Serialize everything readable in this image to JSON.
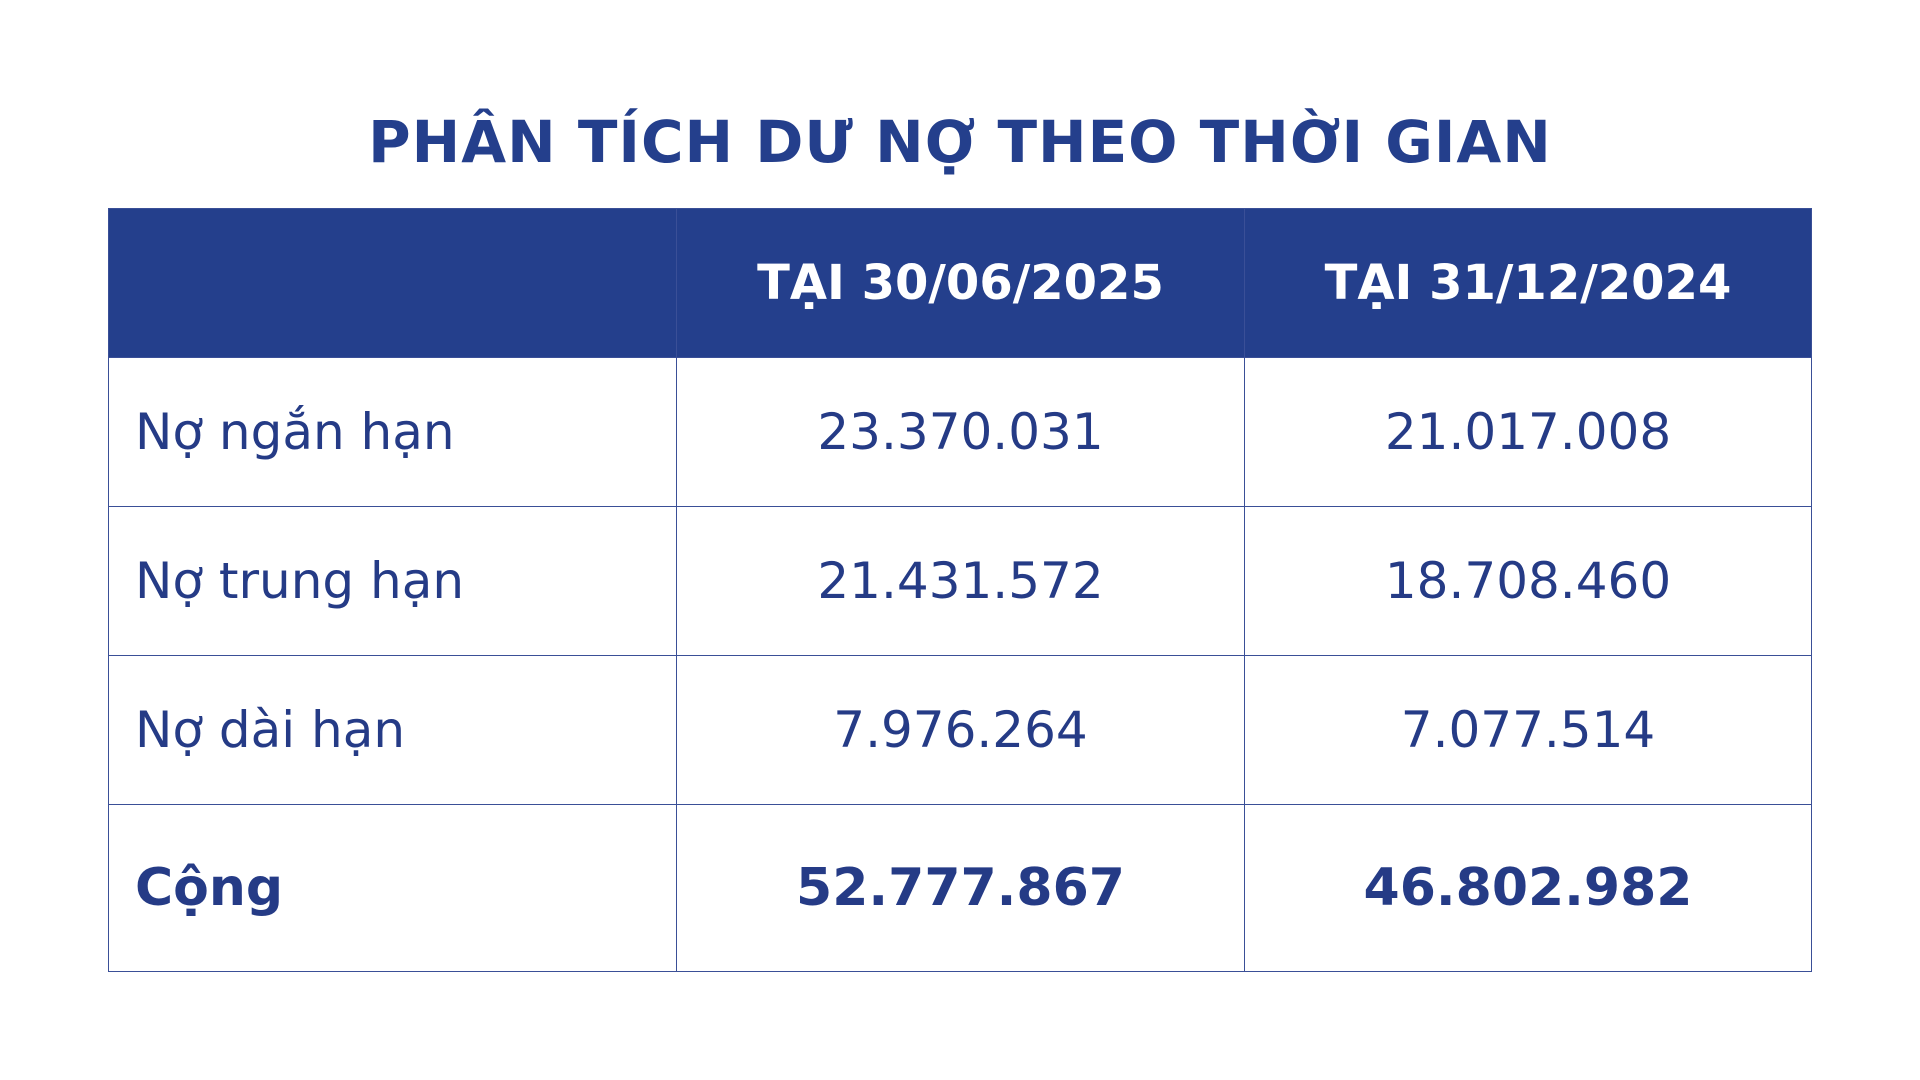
{
  "title": "PHÂN TÍCH DƯ NỢ THEO THỜI GIAN",
  "table": {
    "header": [
      "TẠI 30/06/2025",
      "TẠI 31/12/2024"
    ],
    "rows": [
      [
        "Nợ ngắn hạn",
        "23.370.031",
        "21.017.008"
      ],
      [
        "Nợ trung hạn",
        "21.431.572",
        "18.708.460"
      ],
      [
        "Nợ dài hạn",
        "7.976.264",
        "7.077.514"
      ]
    ],
    "total": [
      "Cộng",
      "52.777.867",
      "46.802.982"
    ]
  }
}
